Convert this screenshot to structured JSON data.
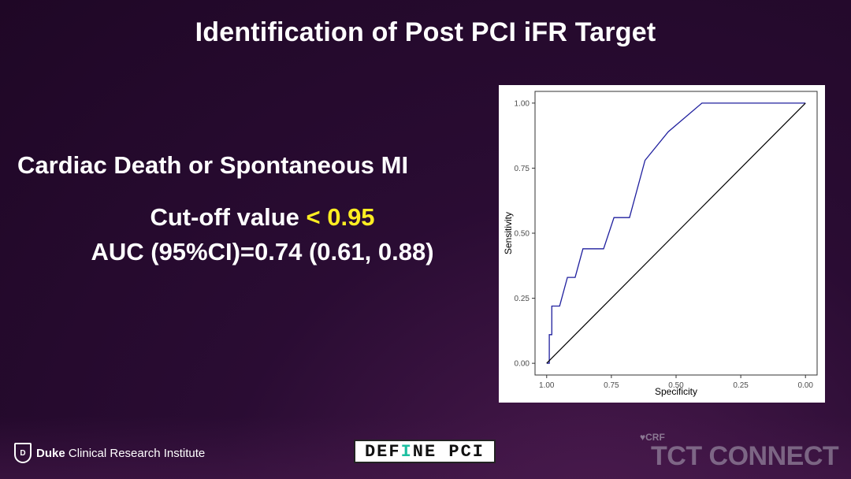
{
  "slide": {
    "title": "Identification of Post PCI iFR Target",
    "subtitle": "Cardiac Death or Spontaneous MI",
    "cutoff_label": "Cut-off value",
    "cutoff_value": "< 0.95",
    "auc_text": "AUC (95%CI)=0.74 (0.61, 0.88)"
  },
  "chart_data": {
    "type": "line",
    "title": "",
    "xlabel": "Specificity",
    "ylabel": "Sensitivity",
    "x_reversed": true,
    "xlim": [
      1.0,
      0.0
    ],
    "ylim": [
      0.0,
      1.0
    ],
    "xticks": [
      "1.00",
      "0.75",
      "0.50",
      "0.25",
      "0.00"
    ],
    "yticks": [
      "0.00",
      "0.25",
      "0.50",
      "0.75",
      "1.00"
    ],
    "grid": false,
    "series": [
      {
        "name": "",
        "color": "#1f1f9e",
        "points": [
          [
            1.0,
            0.0
          ],
          [
            0.99,
            0.0
          ],
          [
            0.99,
            0.11
          ],
          [
            0.98,
            0.11
          ],
          [
            0.98,
            0.22
          ],
          [
            0.95,
            0.22
          ],
          [
            0.92,
            0.33
          ],
          [
            0.89,
            0.33
          ],
          [
            0.86,
            0.44
          ],
          [
            0.78,
            0.44
          ],
          [
            0.74,
            0.56
          ],
          [
            0.68,
            0.56
          ],
          [
            0.62,
            0.78
          ],
          [
            0.53,
            0.89
          ],
          [
            0.4,
            1.0
          ],
          [
            0.0,
            1.0
          ]
        ]
      },
      {
        "name": "",
        "color": "#000000",
        "points": [
          [
            1.0,
            0.0
          ],
          [
            0.0,
            1.0
          ]
        ]
      }
    ]
  },
  "footer": {
    "duke_bold": "Duke",
    "duke_rest": "Clinical Research Institute",
    "define_text_a": "DEF",
    "define_text_b": "I",
    "define_text_c": "NE PCI",
    "crf_text": "CRF",
    "tct_text": "TCT CONNECT"
  }
}
